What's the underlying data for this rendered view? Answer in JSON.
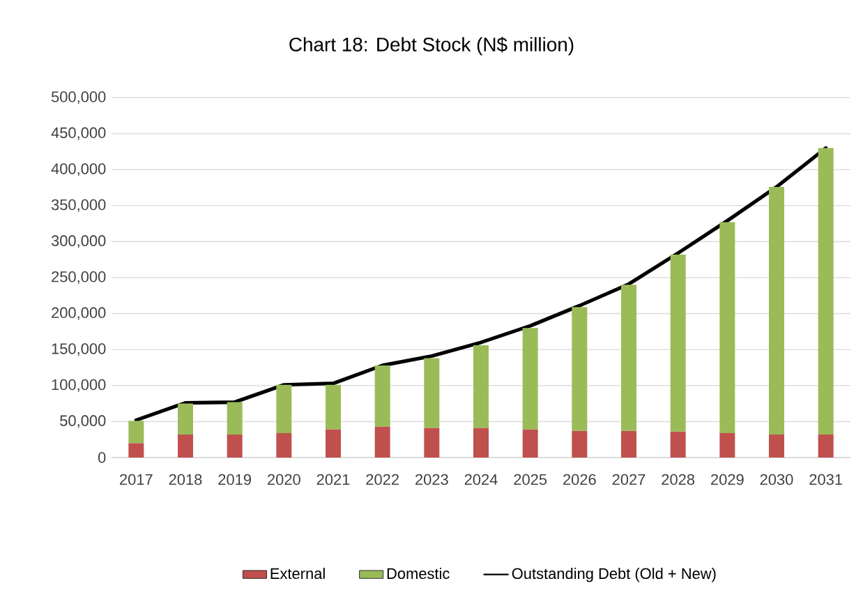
{
  "chart_data": {
    "type": "bar",
    "title": "Chart 18: Debt Stock (N$ million)",
    "stacked": true,
    "grid": "y",
    "legend": "bottom",
    "categories": [
      "2017",
      "2018",
      "2019",
      "2020",
      "2021",
      "2022",
      "2023",
      "2024",
      "2025",
      "2026",
      "2027",
      "2028",
      "2029",
      "2030",
      "2031"
    ],
    "series": [
      {
        "name": "External",
        "color": "#c0504d",
        "values": [
          20000,
          32000,
          32000,
          34000,
          39000,
          43000,
          41000,
          41000,
          39000,
          37000,
          37000,
          36000,
          34000,
          32000,
          32000
        ]
      },
      {
        "name": "Domestic",
        "color": "#9bbb59",
        "values": [
          31000,
          43000,
          45000,
          67000,
          62000,
          85000,
          97000,
          115000,
          141000,
          172000,
          203000,
          246000,
          293000,
          344000,
          398000
        ]
      },
      {
        "name": "Outstanding Debt (Old + New)",
        "type": "line",
        "color": "#000000",
        "values": [
          52000,
          76000,
          77000,
          101000,
          103000,
          128000,
          141000,
          160000,
          183000,
          211000,
          241000,
          284000,
          329000,
          376000,
          430000
        ]
      }
    ],
    "ylim": [
      0,
      500000
    ],
    "yticks": [
      0,
      {
        "value": 50000,
        "label": "50,000"
      },
      {
        "value": 100000,
        "label": "100,000"
      },
      {
        "value": 150000,
        "label": "150,000"
      },
      {
        "value": 200000,
        "label": "200,000"
      },
      {
        "value": 250000,
        "label": "250,000"
      },
      {
        "value": 300000,
        "label": "300,000"
      },
      {
        "value": 350000,
        "label": "350,000"
      },
      {
        "value": 400000,
        "label": "400,000"
      },
      {
        "value": 450000,
        "label": "450,000"
      },
      {
        "value": 500000,
        "label": "500,000"
      }
    ]
  }
}
